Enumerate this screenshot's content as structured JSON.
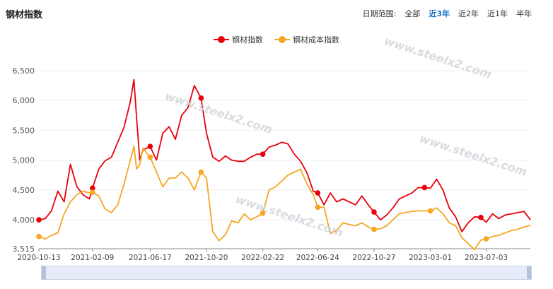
{
  "title": "钢材指数",
  "date_range": {
    "label": "日期范围:",
    "options": [
      "全部",
      "近3年",
      "近2年",
      "近1年",
      "半年"
    ],
    "active": "近3年"
  },
  "watermark": "www.steelx2.com",
  "colors": {
    "steel": "#e8000b",
    "cost": "#f5a623",
    "accent": "#1a73c8"
  },
  "chart_data": {
    "type": "line",
    "ylim": [
      3515,
      6500
    ],
    "yticks": [
      "3,515",
      "4,000",
      "4,500",
      "5,000",
      "5,500",
      "6,000",
      "6,500"
    ],
    "ytick_values": [
      3515,
      4000,
      4500,
      5000,
      5500,
      6000,
      6500
    ],
    "xticks": [
      "2020-10-13",
      "2021-02-09",
      "2021-06-17",
      "2021-10-20",
      "2022-02-22",
      "2022-06-24",
      "2022-10-27",
      "2023-03-01",
      "2023-07-03"
    ],
    "x": [
      "2020-10-13",
      "2020-10-27",
      "2020-11-10",
      "2020-11-24",
      "2020-12-08",
      "2020-12-22",
      "2021-01-05",
      "2021-01-19",
      "2021-02-02",
      "2021-02-09",
      "2021-02-23",
      "2021-03-09",
      "2021-03-23",
      "2021-04-06",
      "2021-04-20",
      "2021-05-04",
      "2021-05-12",
      "2021-05-18",
      "2021-05-25",
      "2021-06-01",
      "2021-06-17",
      "2021-07-01",
      "2021-07-15",
      "2021-07-29",
      "2021-08-12",
      "2021-08-26",
      "2021-09-09",
      "2021-09-23",
      "2021-10-08",
      "2021-10-20",
      "2021-11-03",
      "2021-11-17",
      "2021-12-01",
      "2021-12-15",
      "2021-12-29",
      "2022-01-12",
      "2022-01-26",
      "2022-02-09",
      "2022-02-22",
      "2022-03-08",
      "2022-03-22",
      "2022-04-05",
      "2022-04-19",
      "2022-05-03",
      "2022-05-17",
      "2022-05-31",
      "2022-06-14",
      "2022-06-24",
      "2022-07-08",
      "2022-07-22",
      "2022-08-05",
      "2022-08-19",
      "2022-09-02",
      "2022-09-16",
      "2022-09-30",
      "2022-10-14",
      "2022-10-27",
      "2022-11-10",
      "2022-11-24",
      "2022-12-08",
      "2022-12-22",
      "2023-01-05",
      "2023-01-19",
      "2023-02-02",
      "2023-02-16",
      "2023-03-01",
      "2023-03-15",
      "2023-03-29",
      "2023-04-12",
      "2023-04-26",
      "2023-05-10",
      "2023-05-24",
      "2023-06-07",
      "2023-06-21",
      "2023-07-03",
      "2023-07-17",
      "2023-07-31",
      "2023-08-14",
      "2023-08-28",
      "2023-09-11",
      "2023-09-25",
      "2023-10-09"
    ],
    "series": [
      {
        "name": "钢材指数",
        "color": "#e8000b",
        "values": [
          4000,
          4020,
          4150,
          4480,
          4300,
          4930,
          4560,
          4420,
          4350,
          4530,
          4850,
          4990,
          5050,
          5300,
          5550,
          5980,
          6350,
          5700,
          5000,
          5170,
          5230,
          5000,
          5450,
          5560,
          5350,
          5750,
          5880,
          6250,
          6040,
          5450,
          5050,
          4980,
          5070,
          5000,
          4980,
          4980,
          5050,
          5100,
          5100,
          5220,
          5250,
          5300,
          5270,
          5100,
          4980,
          4790,
          4480,
          4450,
          4250,
          4450,
          4300,
          4350,
          4300,
          4250,
          4400,
          4250,
          4130,
          4000,
          4080,
          4200,
          4350,
          4400,
          4450,
          4540,
          4540,
          4530,
          4680,
          4500,
          4200,
          4050,
          3800,
          3950,
          4050,
          4040,
          3960,
          4100,
          4020,
          4080,
          4100,
          4120,
          4140,
          4000
        ]
      },
      {
        "name": "钢材成本指数",
        "color": "#f5a623",
        "values": [
          3720,
          3680,
          3740,
          3780,
          4100,
          4300,
          4420,
          4480,
          4450,
          4460,
          4400,
          4180,
          4120,
          4250,
          4600,
          5000,
          5230,
          4850,
          4930,
          5200,
          5050,
          4800,
          4550,
          4700,
          4700,
          4800,
          4700,
          4500,
          4800,
          4700,
          3800,
          3650,
          3750,
          3980,
          3950,
          4100,
          4000,
          4050,
          4110,
          4500,
          4550,
          4650,
          4750,
          4800,
          4850,
          4600,
          4420,
          4210,
          4210,
          3770,
          3820,
          3950,
          3920,
          3900,
          3950,
          3880,
          3840,
          3850,
          3900,
          4000,
          4100,
          4120,
          4140,
          4150,
          4150,
          4150,
          4200,
          4100,
          3950,
          3900,
          3700,
          3600,
          3500,
          3660,
          3680,
          3720,
          3740,
          3780,
          3820,
          3840,
          3880,
          3910
        ]
      }
    ],
    "markers": [
      {
        "series": 0,
        "index": 0
      },
      {
        "series": 0,
        "index": 9
      },
      {
        "series": 0,
        "index": 20
      },
      {
        "series": 0,
        "index": 28
      },
      {
        "series": 0,
        "index": 38
      },
      {
        "series": 0,
        "index": 47
      },
      {
        "series": 0,
        "index": 56
      },
      {
        "series": 0,
        "index": 64
      },
      {
        "series": 0,
        "index": 73
      },
      {
        "series": 1,
        "index": 0
      },
      {
        "series": 1,
        "index": 9
      },
      {
        "series": 1,
        "index": 20
      },
      {
        "series": 1,
        "index": 28
      },
      {
        "series": 1,
        "index": 38
      },
      {
        "series": 1,
        "index": 47
      },
      {
        "series": 1,
        "index": 56
      },
      {
        "series": 1,
        "index": 65
      },
      {
        "series": 1,
        "index": 74
      }
    ],
    "grid": true,
    "legend_position": "top-center"
  }
}
